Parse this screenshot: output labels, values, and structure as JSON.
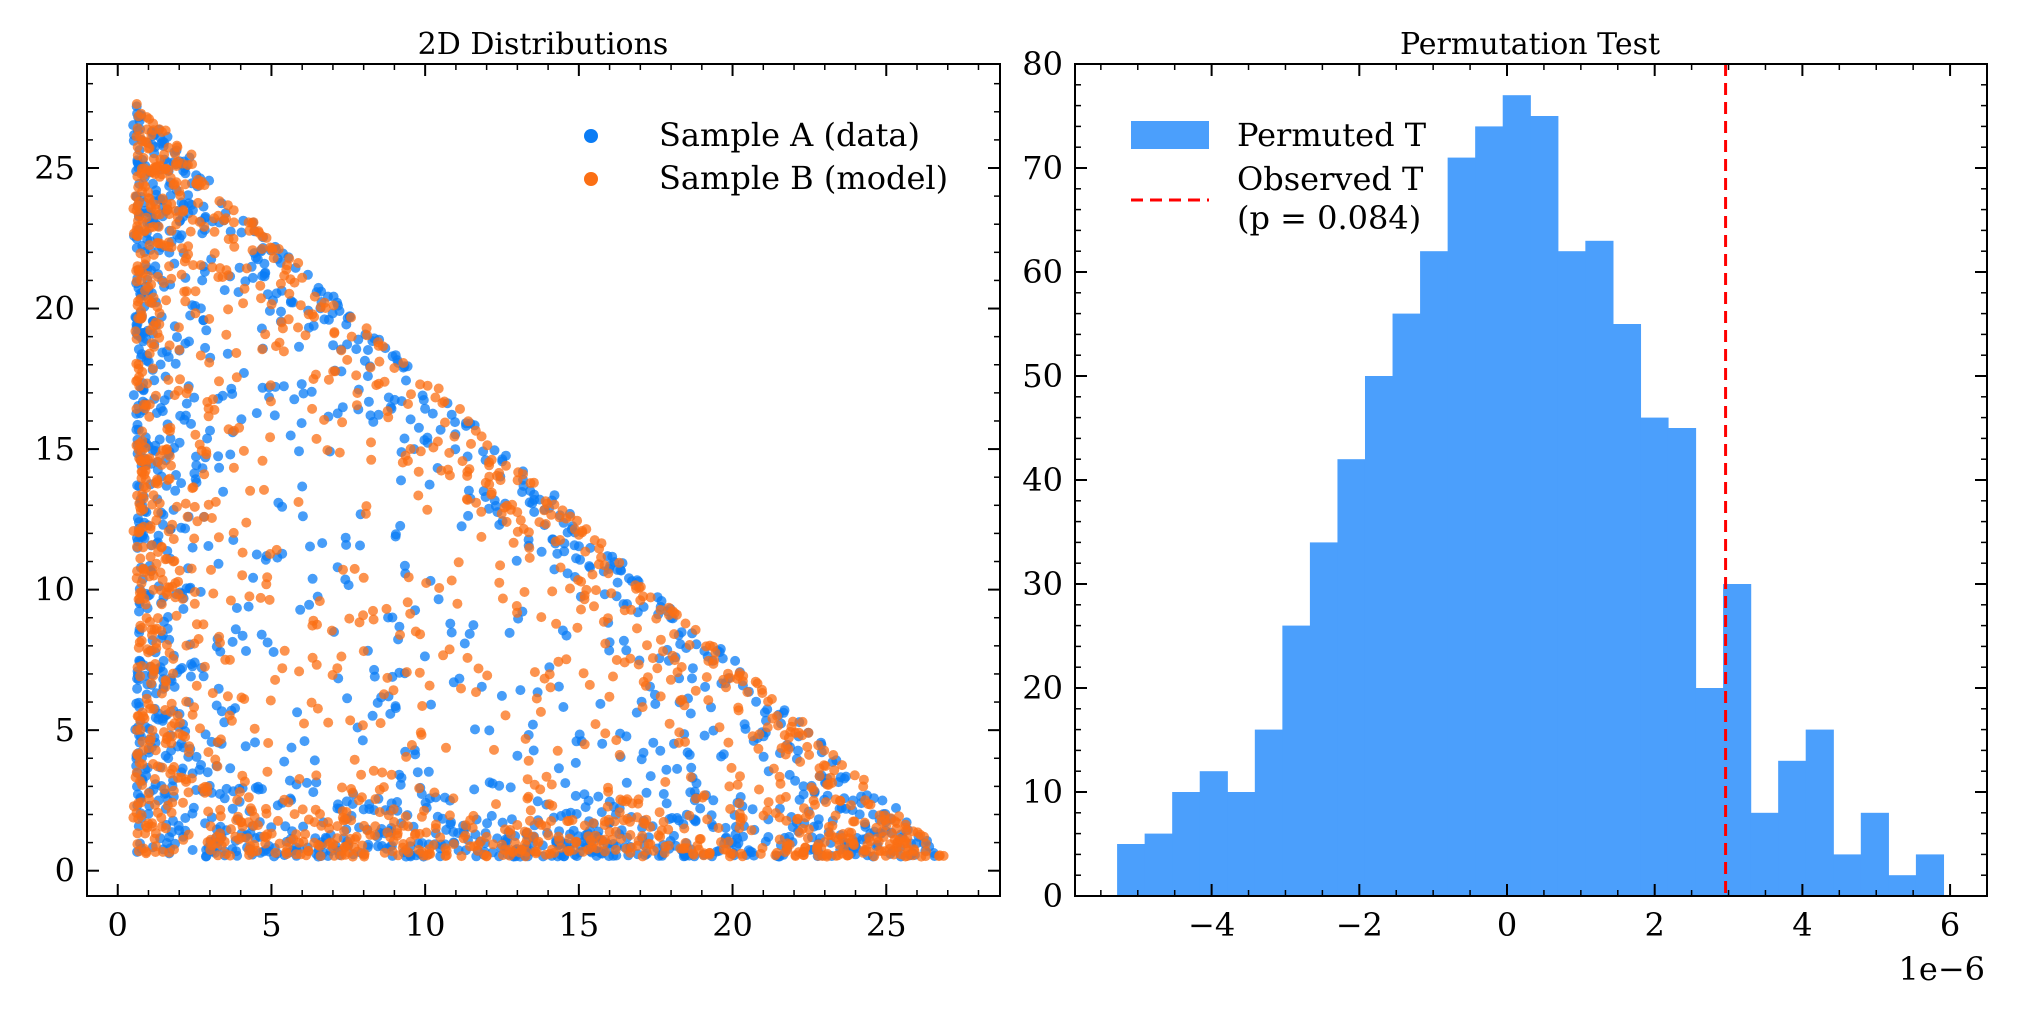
{
  "figure": {
    "background": "#ffffff",
    "text_color": "#000000"
  },
  "chart_data": [
    {
      "type": "scatter",
      "title": "2D Distributions",
      "xlabel": "",
      "ylabel": "",
      "xlim": [
        -1,
        28.7
      ],
      "ylim": [
        -0.9,
        28.7
      ],
      "xticks": [
        0,
        5,
        10,
        15,
        20,
        25
      ],
      "yticks": [
        0,
        5,
        10,
        15,
        20,
        25
      ],
      "grid": false,
      "legend_position": "top-right",
      "series": [
        {
          "name": "Sample A (data)",
          "color": "#0a7cf5",
          "n_points": 1500,
          "seed": 7
        },
        {
          "name": "Sample B (model)",
          "color": "#fb6f14",
          "n_points": 1500,
          "seed": 23
        }
      ],
      "description_of_support": "points fill the region x>0.5, y>0.5, x+y<=28, dense along the three edges"
    },
    {
      "type": "bar",
      "title": "Permutation Test",
      "xlabel": "",
      "ylabel": "",
      "x_offset_label": "1e−6",
      "xlim": [
        -5.85,
        6.5
      ],
      "ylim": [
        0,
        80
      ],
      "xticks": [
        -4,
        -2,
        0,
        2,
        4,
        6
      ],
      "xtick_labels": [
        "−4",
        "−2",
        "0",
        "2",
        "4",
        "6"
      ],
      "yticks": [
        0,
        10,
        20,
        30,
        40,
        50,
        60,
        70,
        80
      ],
      "bin_start": -5.28,
      "bin_width": 0.373,
      "counts": [
        5,
        6,
        10,
        12,
        10,
        16,
        26,
        34,
        42,
        50,
        56,
        62,
        71,
        74,
        77,
        75,
        62,
        63,
        55,
        46,
        45,
        20,
        30,
        8,
        13,
        16,
        4,
        8,
        2,
        4
      ],
      "bar_color": "#4b9ffc",
      "observed_value": 2.96,
      "observed_color": "#ff0000",
      "legend_position": "top-left",
      "legend": {
        "permuted": "Permuted T",
        "observed_line1": "Observed T",
        "observed_line2": "(p = 0.084)"
      }
    }
  ]
}
